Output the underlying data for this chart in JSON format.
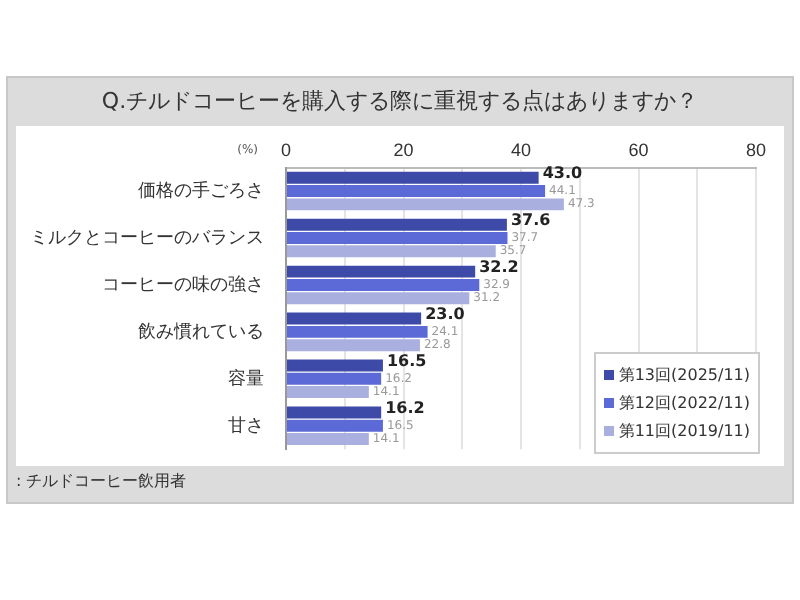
{
  "chart_data": {
    "type": "bar",
    "orientation": "horizontal",
    "title": "Q.チルドコーヒーを購入する際に重視する点はありますか？",
    "xlabel": "(%)",
    "categories": [
      "価格の手ごろさ",
      "ミルクとコーヒーのバランス",
      "コーヒーの味の強さ",
      "飲み慣れている",
      "容量",
      "甘さ"
    ],
    "series": [
      {
        "name": "第13回(2025/11)",
        "color": "#3d4aa8",
        "values": [
          43.0,
          37.6,
          32.2,
          23.0,
          16.5,
          16.2
        ],
        "value_labels": [
          "43.0",
          "37.6",
          "32.2",
          "23.0",
          "16.5",
          "16.2"
        ]
      },
      {
        "name": "第12回(2022/11)",
        "color": "#5b6ad6",
        "values": [
          44.1,
          37.7,
          32.9,
          24.1,
          16.2,
          16.5
        ],
        "value_labels": [
          "44.1",
          "37.7",
          "32.9",
          "24.1",
          "16.2",
          "16.5"
        ]
      },
      {
        "name": "第11回(2019/11)",
        "color": "#a9b0e0",
        "values": [
          47.3,
          35.7,
          31.2,
          22.8,
          14.1,
          14.1
        ],
        "value_labels": [
          "47.3",
          "35.7",
          "31.2",
          "22.8",
          "14.1",
          "14.1"
        ]
      }
    ],
    "xlim": [
      0,
      80
    ],
    "xticks": [
      0,
      {
        "value": 10,
        "label": null
      },
      20,
      {
        "value": 30,
        "label": null
      },
      40,
      {
        "value": 50,
        "label": null
      },
      60,
      {
        "value": 70,
        "label": null
      },
      80
    ],
    "grid": "x",
    "legend": "bottom right",
    "annotations": [
      ": チルドコーヒー飲用者"
    ]
  }
}
